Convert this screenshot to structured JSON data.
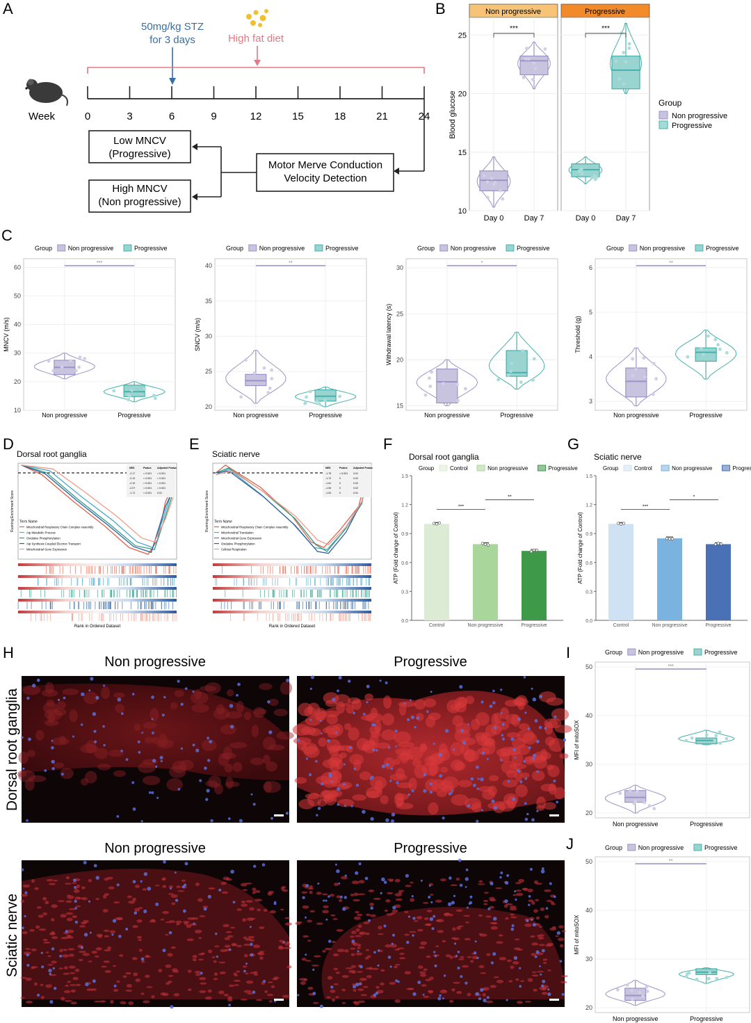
{
  "panels": {
    "A": {
      "label": "A",
      "stz_line1": "50mg/kg STZ",
      "stz_line2": "for 3 days",
      "hfd": "High fat diet",
      "week_label": "Week",
      "ticks": [
        "0",
        "3",
        "6",
        "9",
        "12",
        "15",
        "18",
        "21",
        "24"
      ],
      "mncv_box": "Motor Merve Conduction",
      "mncv_box2": "Velocity Detection",
      "low_line1": "Low MNCV",
      "low_line2": "(Progressive)",
      "high_line1": "High MNCV",
      "high_line2": "(Non progressive)",
      "colors": {
        "stz": "#3a6ea5",
        "hfd": "#e07a84",
        "hfd_dots": "#f0c030"
      }
    },
    "B": {
      "label": "B",
      "facets": [
        "Non progressive",
        "Progressive"
      ],
      "ylabel": "Blood glucose",
      "yticks": [
        "10",
        "15",
        "20",
        "25"
      ],
      "xticks": [
        "Day 0",
        "Day 7"
      ],
      "sig": [
        "***",
        "***"
      ],
      "legend_title": "Group",
      "legend_items": [
        "Non progressive",
        "Progressive"
      ],
      "facet_colors": [
        "#f7c477",
        "#f28a2a"
      ]
    },
    "C": {
      "label": "C",
      "legend_title": "Group",
      "legend_items": [
        "Non progressive",
        "Progressive"
      ],
      "xticks": [
        "Non progressive",
        "Progressive"
      ]
    },
    "D": {
      "label": "D",
      "title": "Dorsal root ganglia",
      "xlabel": "Rank in Ordered Dataset",
      "ylabel": "Running Enrichment Score",
      "term_header": "Term Name",
      "terms": [
        "Mitochondrial Respiratory Chain Complex Assembly",
        "Atp Metabolic Process",
        "Oxidative Phosphorylation",
        "Atp Synthesis Coupled Electron Transport",
        "Mitochondrial Gene Expression"
      ],
      "table_header": [
        "NES",
        "Pvalue",
        "Adjusted Pvalue"
      ],
      "table_rows": [
        [
          "-2.17",
          "< 0.001",
          "< 0.001"
        ],
        [
          "-2.12",
          "< 0.001",
          "< 0.001"
        ],
        [
          "-2.10",
          "< 0.001",
          "< 0.001"
        ],
        [
          "-2.07",
          "< 0.001",
          "< 0.001"
        ],
        [
          "-1.71",
          "< 0.001",
          "0.01"
        ]
      ]
    },
    "E": {
      "label": "E",
      "title": "Sciatic nerve",
      "xlabel": "Rank in Ordered Dataset",
      "ylabel": "Running Enrichment Score",
      "term_header": "Term Name",
      "terms": [
        "Mitochondrial Respiratory Chain Complex Assembly",
        "Mitochondrial Translation",
        "Mitochondrial Gene Expression",
        "Oxidative Phosphorylation",
        "Cellular Respiration"
      ],
      "table_header": [
        "NES",
        "Pvalue",
        "Adjusted Pvalue"
      ],
      "table_rows": [
        [
          "-1.79",
          "< 0.001",
          "0.01"
        ],
        [
          "-1.72",
          "0",
          "0.02"
        ],
        [
          "-1.61",
          "0",
          "0.02"
        ],
        [
          "-1.59",
          "0",
          "0.02"
        ],
        [
          "-1.53",
          "0",
          "0.01"
        ]
      ]
    },
    "F": {
      "label": "F",
      "title": "Dorsal root ganglia",
      "legend_title": "Group",
      "legend_items": [
        "Control",
        "Non progressive",
        "Progressive"
      ],
      "colors": [
        "#dcebd3",
        "#a9d69b",
        "#3e9a48"
      ]
    },
    "G": {
      "label": "G",
      "title": "Sciatic nerve",
      "legend_title": "Group",
      "legend_items": [
        "Control",
        "Non progressive",
        "Progressive"
      ],
      "colors": [
        "#cfe2f3",
        "#7ab3e0",
        "#4a70b6"
      ]
    },
    "H": {
      "label": "H",
      "col_titles": [
        "Non progressive",
        "Progressive"
      ],
      "row_titles": [
        "Dorsal root ganglia",
        "Sciatic nerve"
      ]
    },
    "I": {
      "label": "I",
      "ylabel": "MFI of mitoSOX"
    },
    "J": {
      "label": "J",
      "ylabel": "MFI of mitoSOX"
    }
  },
  "colors": {
    "nonprog": "#9b93c6",
    "prog": "#47b0aa"
  },
  "chart_data": [
    {
      "id": "B",
      "type": "box",
      "ylabel": "Blood glucose",
      "ylim": [
        10,
        26.5
      ],
      "facets": [
        {
          "name": "Non progressive",
          "groups": [
            {
              "x": "Day 0",
              "q1": 11.7,
              "median": 12.6,
              "q3": 13.4,
              "min": 10.3,
              "max": 14.6
            },
            {
              "x": "Day 7",
              "q1": 21.6,
              "median": 22.8,
              "q3": 23.2,
              "min": 20.4,
              "max": 24.4
            }
          ]
        },
        {
          "name": "Progressive",
          "groups": [
            {
              "x": "Day 0",
              "q1": 12.9,
              "median": 13.5,
              "q3": 14.0,
              "min": 12.3,
              "max": 14.6
            },
            {
              "x": "Day 7",
              "q1": 20.4,
              "median": 22.0,
              "q3": 23.2,
              "min": 20.0,
              "max": 26.0
            }
          ]
        }
      ]
    },
    {
      "id": "C1",
      "type": "box",
      "ylabel": "MNCV (m/s)",
      "ylim": [
        10,
        63
      ],
      "yticks": [
        10,
        20,
        30,
        40,
        50,
        60
      ],
      "sig": "***",
      "groups": [
        {
          "name": "Non progressive",
          "q1": 22.5,
          "median": 25.0,
          "q3": 27.5,
          "min": 21.0,
          "max": 30.0
        },
        {
          "name": "Progressive",
          "q1": 14.8,
          "median": 16.5,
          "q3": 18.8,
          "min": 13.0,
          "max": 20.0
        }
      ]
    },
    {
      "id": "C2",
      "type": "box",
      "ylabel": "SNCV (m/s)",
      "ylim": [
        19.5,
        41
      ],
      "yticks": [
        20,
        25,
        30,
        35,
        40
      ],
      "sig": "**",
      "groups": [
        {
          "name": "Non progressive",
          "q1": 23.0,
          "median": 23.7,
          "q3": 24.6,
          "min": 20.5,
          "max": 28.0
        },
        {
          "name": "Progressive",
          "q1": 20.8,
          "median": 21.5,
          "q3": 22.4,
          "min": 20.0,
          "max": 22.8
        }
      ]
    },
    {
      "id": "C3",
      "type": "box",
      "ylabel": "Withdrawal latency (s)",
      "ylim": [
        14.5,
        31
      ],
      "yticks": [
        15,
        20,
        25,
        30
      ],
      "sig": "*",
      "groups": [
        {
          "name": "Non progressive",
          "q1": 15.3,
          "median": 17.6,
          "q3": 19.0,
          "min": 15.0,
          "max": 20.0
        },
        {
          "name": "Progressive",
          "q1": 18.2,
          "median": 18.6,
          "q3": 21.0,
          "min": 16.8,
          "max": 23.0
        }
      ]
    },
    {
      "id": "C4",
      "type": "box",
      "ylabel": "Threshold (g)",
      "ylim": [
        2.8,
        6.2
      ],
      "yticks": [
        3,
        4,
        5,
        6
      ],
      "sig": "**",
      "groups": [
        {
          "name": "Non progressive",
          "q1": 3.1,
          "median": 3.45,
          "q3": 3.75,
          "min": 2.9,
          "max": 4.2
        },
        {
          "name": "Progressive",
          "q1": 3.9,
          "median": 4.1,
          "q3": 4.2,
          "min": 3.5,
          "max": 4.6
        }
      ]
    },
    {
      "id": "F",
      "type": "bar",
      "title": "Dorsal root ganglia",
      "ylabel": "ATP (Fold change of Control)",
      "ylim": [
        0,
        1.5
      ],
      "yticks": [
        0.0,
        0.3,
        0.6,
        0.9,
        1.2,
        1.5
      ],
      "categories": [
        "Control",
        "Non progressive",
        "Progressive"
      ],
      "values": [
        1.0,
        0.79,
        0.72
      ],
      "sig": [
        {
          "from": 0,
          "to": 1,
          "label": "***",
          "y": 1.15
        },
        {
          "from": 1,
          "to": 2,
          "label": "**",
          "y": 1.25
        }
      ]
    },
    {
      "id": "G",
      "type": "bar",
      "title": "Sciatic nerve",
      "ylabel": "ATP (Fold change of Control)",
      "ylim": [
        0,
        1.5
      ],
      "yticks": [
        0.0,
        0.3,
        0.6,
        0.9,
        1.2,
        1.5
      ],
      "categories": [
        "Control",
        "Non progressive",
        "Progressive"
      ],
      "values": [
        1.0,
        0.85,
        0.79
      ],
      "sig": [
        {
          "from": 0,
          "to": 1,
          "label": "***",
          "y": 1.15
        },
        {
          "from": 1,
          "to": 2,
          "label": "*",
          "y": 1.25
        }
      ]
    },
    {
      "id": "I",
      "type": "box",
      "ylabel": "MFI of mitoSOX",
      "ylim": [
        19,
        51
      ],
      "yticks": [
        20,
        30,
        40,
        50
      ],
      "sig": "***",
      "groups": [
        {
          "name": "Non progressive",
          "q1": 22.2,
          "median": 23.2,
          "q3": 24.6,
          "min": 20.0,
          "max": 25.7
        },
        {
          "name": "Progressive",
          "q1": 34.2,
          "median": 34.9,
          "q3": 35.4,
          "min": 34.0,
          "max": 37.0
        }
      ]
    },
    {
      "id": "J",
      "type": "box",
      "ylabel": "MFI of mitoSOX",
      "ylim": [
        19,
        51
      ],
      "yticks": [
        20,
        30,
        40,
        50
      ],
      "sig": "**",
      "groups": [
        {
          "name": "Non progressive",
          "q1": 21.5,
          "median": 22.5,
          "q3": 24.0,
          "min": 20.5,
          "max": 25.6
        },
        {
          "name": "Progressive",
          "q1": 26.8,
          "median": 27.3,
          "q3": 28.0,
          "min": 25.0,
          "max": 28.2
        }
      ]
    }
  ]
}
